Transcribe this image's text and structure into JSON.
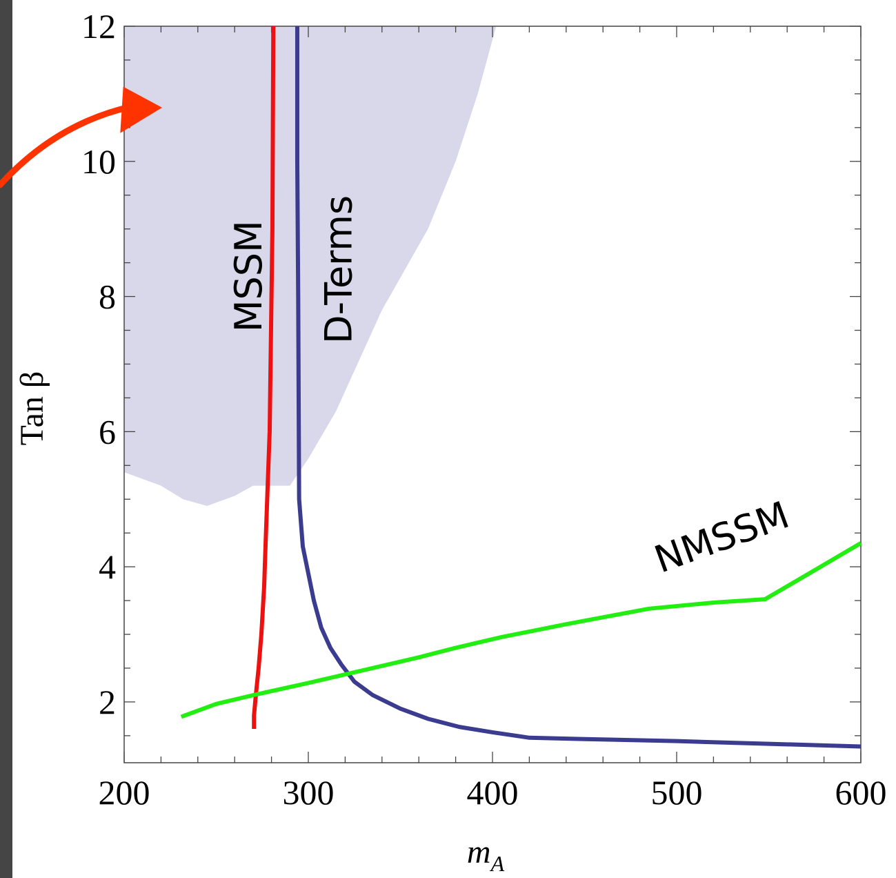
{
  "chart_data": {
    "type": "line",
    "xlabel": "m",
    "xlabel_sub": "A",
    "ylabel": "Tan β",
    "xlim": [
      200,
      600
    ],
    "ylim": [
      1.1,
      12
    ],
    "x_ticks": [
      200,
      300,
      400,
      500,
      600
    ],
    "y_ticks": [
      2,
      4,
      6,
      8,
      10,
      12
    ],
    "x_minor_step": 20,
    "y_minor_step": 0.5,
    "grid": false,
    "colors": {
      "MSSM": "#ee1111",
      "D-Terms": "#3b3b8f",
      "NMSSM": "#22ee11",
      "shaded_region": "#d8d8ea",
      "arrow": "#ff3300"
    },
    "region": {
      "points": [
        [
          200,
          12
        ],
        [
          402,
          12
        ],
        [
          392,
          11
        ],
        [
          380,
          10
        ],
        [
          365,
          9
        ],
        [
          340,
          7.8
        ],
        [
          315,
          6.3
        ],
        [
          300,
          5.6
        ],
        [
          290,
          5.2
        ],
        [
          270,
          5.2
        ],
        [
          260,
          5.05
        ],
        [
          245,
          4.9
        ],
        [
          232,
          5.0
        ],
        [
          220,
          5.2
        ],
        [
          200,
          5.4
        ]
      ]
    },
    "series": [
      {
        "name": "MSSM",
        "x": [
          281,
          280.5,
          279,
          277,
          276,
          274.5,
          273,
          271.5,
          270.5,
          270.5
        ],
        "y": [
          12,
          9,
          6,
          4.5,
          3.7,
          3,
          2.5,
          2.1,
          1.8,
          1.6
        ]
      },
      {
        "name": "D-Terms",
        "x": [
          294,
          294,
          294.5,
          295,
          297,
          300,
          303,
          307,
          312,
          318,
          325,
          335,
          350,
          365,
          382,
          400,
          420,
          450,
          500,
          550,
          600
        ],
        "y": [
          12,
          10,
          8,
          5,
          4.3,
          3.9,
          3.5,
          3.1,
          2.8,
          2.55,
          2.3,
          2.1,
          1.9,
          1.75,
          1.63,
          1.55,
          1.47,
          1.45,
          1.42,
          1.38,
          1.34
        ]
      },
      {
        "name": "NMSSM",
        "x": [
          231,
          250,
          270,
          300,
          330,
          360,
          380,
          405,
          440,
          485,
          520,
          548,
          575,
          600
        ],
        "y": [
          1.78,
          1.97,
          2.1,
          2.28,
          2.47,
          2.66,
          2.8,
          2.96,
          3.15,
          3.38,
          3.47,
          3.52,
          3.95,
          4.35
        ]
      }
    ],
    "labels": [
      {
        "text": "MSSM",
        "x": 269,
        "y": 8.3,
        "rotate": -90
      },
      {
        "text": "D-Terms",
        "x": 318,
        "y": 8.4,
        "rotate": -90
      },
      {
        "text": "NMSSM",
        "x": 525,
        "y": 4.4,
        "rotate": -20
      }
    ]
  }
}
